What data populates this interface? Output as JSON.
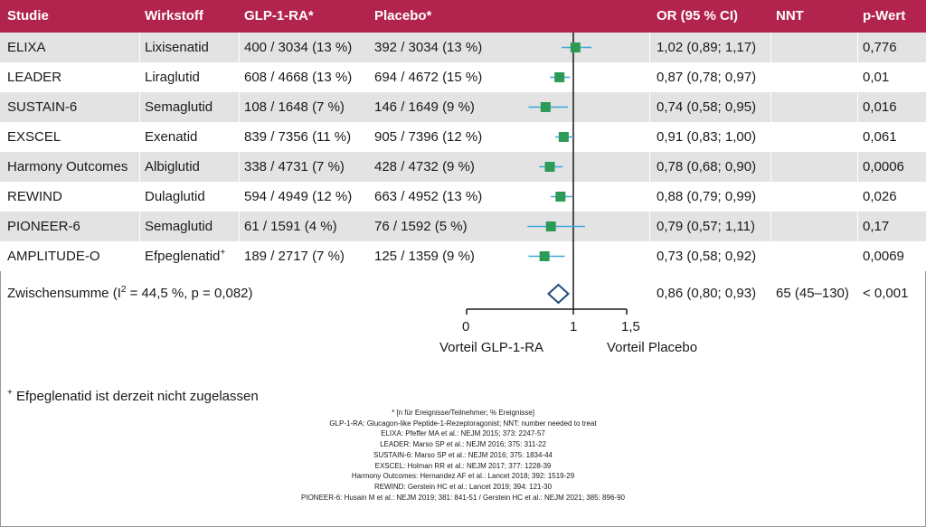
{
  "header": {
    "studie": "Studie",
    "wirkstoff": "Wirkstoff",
    "glp": "GLP-1-RA*",
    "placebo": "Placebo*",
    "or": "OR (95 % CI)",
    "nnt": "NNT",
    "p": "p-Wert"
  },
  "rows": [
    {
      "studie": "ELIXA",
      "wirkstoff": "Lixisenatid",
      "wirkstoff_sup": "",
      "glp": "400 / 3034 (13 %)",
      "placebo": "392 / 3034 (13 %)",
      "or": "1,02 (0,89; 1,17)",
      "p": "0,776"
    },
    {
      "studie": "LEADER",
      "wirkstoff": "Liraglutid",
      "wirkstoff_sup": "",
      "glp": "608 / 4668 (13 %)",
      "placebo": "694 / 4672 (15 %)",
      "or": "0,87 (0,78; 0,97)",
      "p": "0,01"
    },
    {
      "studie": "SUSTAIN-6",
      "wirkstoff": "Semaglutid",
      "wirkstoff_sup": "",
      "glp": "108 / 1648 (7 %)",
      "placebo": "146 / 1649 (9 %)",
      "or": "0,74 (0,58; 0,95)",
      "p": "0,016"
    },
    {
      "studie": "EXSCEL",
      "wirkstoff": "Exenatid",
      "wirkstoff_sup": "",
      "glp": "839 / 7356 (11 %)",
      "placebo": "905 / 7396 (12 %)",
      "or": "0,91 (0,83; 1,00)",
      "p": "0,061"
    },
    {
      "studie": "Harmony Outcomes",
      "wirkstoff": "Albiglutid",
      "wirkstoff_sup": "",
      "glp": "338 / 4731 (7 %)",
      "placebo": "428 / 4732 (9 %)",
      "or": "0,78 (0,68; 0,90)",
      "p": "0,0006"
    },
    {
      "studie": "REWIND",
      "wirkstoff": "Dulaglutid",
      "wirkstoff_sup": "",
      "glp": "594 / 4949 (12 %)",
      "placebo": "663 / 4952 (13 %)",
      "or": "0,88 (0,79; 0,99)",
      "p": "0,026"
    },
    {
      "studie": "PIONEER-6",
      "wirkstoff": "Semaglutid",
      "wirkstoff_sup": "",
      "glp": "61 / 1591 (4 %)",
      "placebo": "76 / 1592 (5 %)",
      "or": "0,79 (0,57; 1,11)",
      "p": "0,17"
    },
    {
      "studie": "AMPLITUDE-O",
      "wirkstoff": "Efpeglenatid",
      "wirkstoff_sup": "+",
      "glp": "189 / 2717 (7 %)",
      "placebo": "125 / 1359 (9 %)",
      "or": "0,73 (0,58; 0,92)",
      "p": "0,0069"
    }
  ],
  "summary": {
    "label_pre": "Zwischensumme (I",
    "label_sup": "2",
    "label_post": " = 44,5 %, p = 0,082)",
    "or": "0,86 (0,80; 0,93)",
    "nnt": "65 (45–130)",
    "p": "< 0,001"
  },
  "axis": {
    "tick_labels": [
      "0",
      "1",
      "1,5"
    ],
    "left_label": "Vorteil GLP-1-RA",
    "right_label": "Vorteil Placebo"
  },
  "footnote": {
    "sup": "+",
    "text": " Efpeglenatid ist derzeit nicht zugelassen"
  },
  "references": [
    "* [n für Ereignisse/Teilnehmer; % Ereignisse]",
    "GLP-1-RA: Glucagon-like Peptide-1-Rezeptoragonist; NNT: number needed to treat",
    "ELIXA: Pfeffer MA et al.: NEJM 2015; 373: 2247-57",
    "LEADER: Marso SP et al.: NEJM 2016; 375: 311-22",
    "SUSTAIN-6: Marso SP et al.: NEJM 2016; 375: 1834-44",
    "EXSCEL: Holman RR et al.: NEJM 2017; 377: 1228-39",
    "Harmony Outcomes: Hernandez AF et al.: Lancet 2018; 392: 1519-29",
    "REWIND: Gerstein HC et al.: Lancet 2019; 394: 121-30",
    "PIONEER-6: Husain M et al.: NEJM 2019; 381: 841-51 / Gerstein HC et al.: NEJM 2021; 385: 896-90"
  ],
  "colors": {
    "header_bg": "#b2234d",
    "alt_row_bg": "#e3e3e3",
    "point_fill": "#2e9a57",
    "ci_line": "#3aa8d8",
    "diamond_stroke": "#1f4e79"
  },
  "chart_data": {
    "type": "forest",
    "xlim": [
      0,
      1.5
    ],
    "xticks": [
      0,
      1,
      1.5
    ],
    "reference_line": 1,
    "grid": false,
    "studies": [
      {
        "name": "ELIXA",
        "or": 1.02,
        "lower": 0.89,
        "upper": 1.17
      },
      {
        "name": "LEADER",
        "or": 0.87,
        "lower": 0.78,
        "upper": 0.97
      },
      {
        "name": "SUSTAIN-6",
        "or": 0.74,
        "lower": 0.58,
        "upper": 0.95
      },
      {
        "name": "EXSCEL",
        "or": 0.91,
        "lower": 0.83,
        "upper": 1.0
      },
      {
        "name": "Harmony Outcomes",
        "or": 0.78,
        "lower": 0.68,
        "upper": 0.9
      },
      {
        "name": "REWIND",
        "or": 0.88,
        "lower": 0.79,
        "upper": 0.99
      },
      {
        "name": "PIONEER-6",
        "or": 0.79,
        "lower": 0.57,
        "upper": 1.11
      },
      {
        "name": "AMPLITUDE-O",
        "or": 0.73,
        "lower": 0.58,
        "upper": 0.92
      }
    ],
    "pooled": {
      "or": 0.86,
      "lower": 0.8,
      "upper": 0.93
    }
  }
}
